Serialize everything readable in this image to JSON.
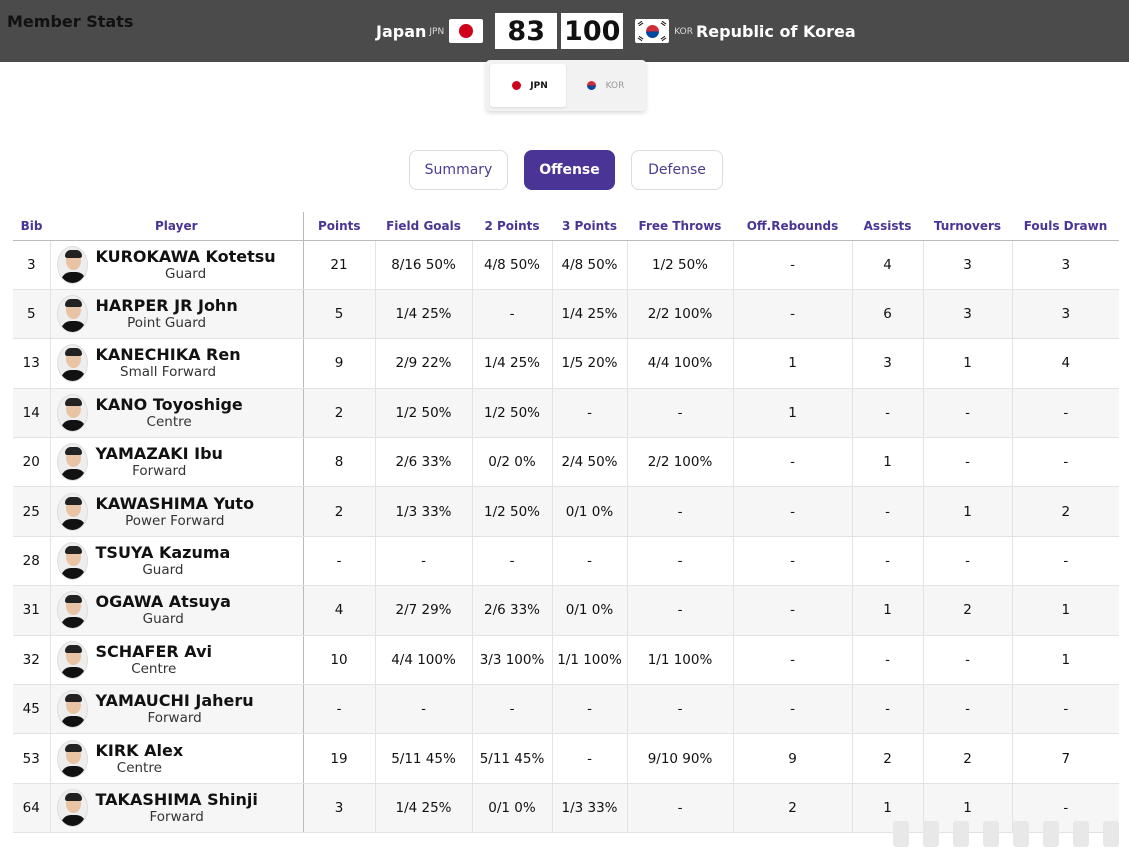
{
  "page_title": "Member Stats",
  "match": {
    "home": {
      "name": "Japan",
      "code": "JPN",
      "score": "83",
      "flag_icon": "japan-flag-icon"
    },
    "away": {
      "name": "Republic of Korea",
      "code": "KOR",
      "score": "100",
      "flag_icon": "korea-flag-icon"
    }
  },
  "team_toggle": [
    {
      "code": "JPN",
      "active": true
    },
    {
      "code": "KOR",
      "active": false
    }
  ],
  "tabs": [
    {
      "label": "Summary",
      "active": false
    },
    {
      "label": "Offense",
      "active": true
    },
    {
      "label": "Defense",
      "active": false
    }
  ],
  "columns": [
    "Bib",
    "Player",
    "Points",
    "Field Goals",
    "2 Points",
    "3 Points",
    "Free Throws",
    "Off.Rebounds",
    "Assists",
    "Turnovers",
    "Fouls Drawn"
  ],
  "rows": [
    {
      "bib": "3",
      "name": "KUROKAWA Kotetsu",
      "position": "Guard",
      "points": "21",
      "fg": "8/16 50%",
      "p2": "4/8 50%",
      "p3": "4/8 50%",
      "ft": "1/2 50%",
      "oreb": "-",
      "ast": "4",
      "to": "3",
      "fd": "3"
    },
    {
      "bib": "5",
      "name": "HARPER JR John",
      "position": "Point Guard",
      "points": "5",
      "fg": "1/4 25%",
      "p2": "-",
      "p3": "1/4 25%",
      "ft": "2/2 100%",
      "oreb": "-",
      "ast": "6",
      "to": "3",
      "fd": "3"
    },
    {
      "bib": "13",
      "name": "KANECHIKA Ren",
      "position": "Small Forward",
      "points": "9",
      "fg": "2/9 22%",
      "p2": "1/4 25%",
      "p3": "1/5 20%",
      "ft": "4/4 100%",
      "oreb": "1",
      "ast": "3",
      "to": "1",
      "fd": "4"
    },
    {
      "bib": "14",
      "name": "KANO Toyoshige",
      "position": "Centre",
      "points": "2",
      "fg": "1/2 50%",
      "p2": "1/2 50%",
      "p3": "-",
      "ft": "-",
      "oreb": "1",
      "ast": "-",
      "to": "-",
      "fd": "-"
    },
    {
      "bib": "20",
      "name": "YAMAZAKI Ibu",
      "position": "Forward",
      "points": "8",
      "fg": "2/6 33%",
      "p2": "0/2 0%",
      "p3": "2/4 50%",
      "ft": "2/2 100%",
      "oreb": "-",
      "ast": "1",
      "to": "-",
      "fd": "-"
    },
    {
      "bib": "25",
      "name": "KAWASHIMA Yuto",
      "position": "Power Forward",
      "points": "2",
      "fg": "1/3 33%",
      "p2": "1/2 50%",
      "p3": "0/1 0%",
      "ft": "-",
      "oreb": "-",
      "ast": "-",
      "to": "1",
      "fd": "2"
    },
    {
      "bib": "28",
      "name": "TSUYA Kazuma",
      "position": "Guard",
      "points": "-",
      "fg": "-",
      "p2": "-",
      "p3": "-",
      "ft": "-",
      "oreb": "-",
      "ast": "-",
      "to": "-",
      "fd": "-"
    },
    {
      "bib": "31",
      "name": "OGAWA Atsuya",
      "position": "Guard",
      "points": "4",
      "fg": "2/7 29%",
      "p2": "2/6 33%",
      "p3": "0/1 0%",
      "ft": "-",
      "oreb": "-",
      "ast": "1",
      "to": "2",
      "fd": "1"
    },
    {
      "bib": "32",
      "name": "SCHAFER Avi",
      "position": "Centre",
      "points": "10",
      "fg": "4/4 100%",
      "p2": "3/3 100%",
      "p3": "1/1 100%",
      "ft": "1/1 100%",
      "oreb": "-",
      "ast": "-",
      "to": "-",
      "fd": "1"
    },
    {
      "bib": "45",
      "name": "YAMAUCHI Jaheru",
      "position": "Forward",
      "points": "-",
      "fg": "-",
      "p2": "-",
      "p3": "-",
      "ft": "-",
      "oreb": "-",
      "ast": "-",
      "to": "-",
      "fd": "-"
    },
    {
      "bib": "53",
      "name": "KIRK Alex",
      "position": "Centre",
      "points": "19",
      "fg": "5/11 45%",
      "p2": "5/11 45%",
      "p3": "-",
      "ft": "9/10 90%",
      "oreb": "9",
      "ast": "2",
      "to": "2",
      "fd": "7"
    },
    {
      "bib": "64",
      "name": "TAKASHIMA Shinji",
      "position": "Forward",
      "points": "3",
      "fg": "1/4 25%",
      "p2": "0/1 0%",
      "p3": "1/3 33%",
      "ft": "-",
      "oreb": "2",
      "ast": "1",
      "to": "1",
      "fd": "-"
    }
  ],
  "colors": {
    "accent": "#4a3596",
    "topbar": "#4b4b4b",
    "japan_red": "#d0021b"
  }
}
